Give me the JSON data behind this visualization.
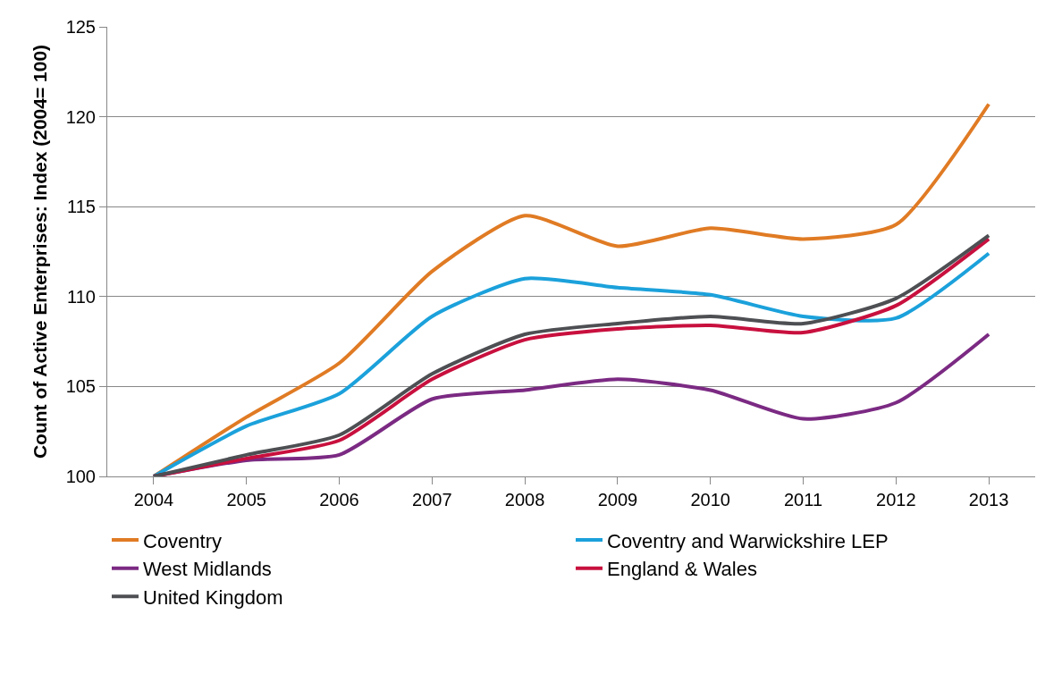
{
  "chart_data": {
    "type": "line",
    "ylabel": "Count of Active Enterprises: Index (2004= 100)",
    "categories": [
      "2004",
      "2005",
      "2006",
      "2007",
      "2008",
      "2009",
      "2010",
      "2011",
      "2012",
      "2013"
    ],
    "series": [
      {
        "name": "Coventry",
        "color": "#e07b24",
        "values": [
          100,
          103.3,
          106.3,
          111.4,
          114.5,
          112.8,
          113.8,
          113.2,
          114.0,
          120.7
        ]
      },
      {
        "name": "Coventry and Warwickshire LEP",
        "color": "#1ba1db",
        "values": [
          100,
          102.8,
          104.6,
          108.9,
          111.0,
          110.5,
          110.1,
          108.9,
          108.8,
          112.4
        ]
      },
      {
        "name": "West Midlands",
        "color": "#7b2a83",
        "values": [
          100,
          100.9,
          101.2,
          104.3,
          104.8,
          105.4,
          104.8,
          103.2,
          104.1,
          107.9
        ]
      },
      {
        "name": "England & Wales",
        "color": "#c8103e",
        "values": [
          100,
          101.0,
          102.0,
          105.4,
          107.6,
          108.2,
          108.4,
          108.0,
          109.5,
          113.2
        ]
      },
      {
        "name": "United Kingdom",
        "color": "#4d4f53",
        "values": [
          100,
          101.2,
          102.3,
          105.7,
          107.9,
          108.5,
          108.9,
          108.5,
          109.9,
          113.4
        ]
      }
    ],
    "ylim": [
      100,
      125
    ],
    "yticks": [
      100,
      105,
      110,
      115,
      120,
      125
    ],
    "grid": "y",
    "legend": "bottom",
    "marker": "none",
    "line_style": "solid"
  }
}
